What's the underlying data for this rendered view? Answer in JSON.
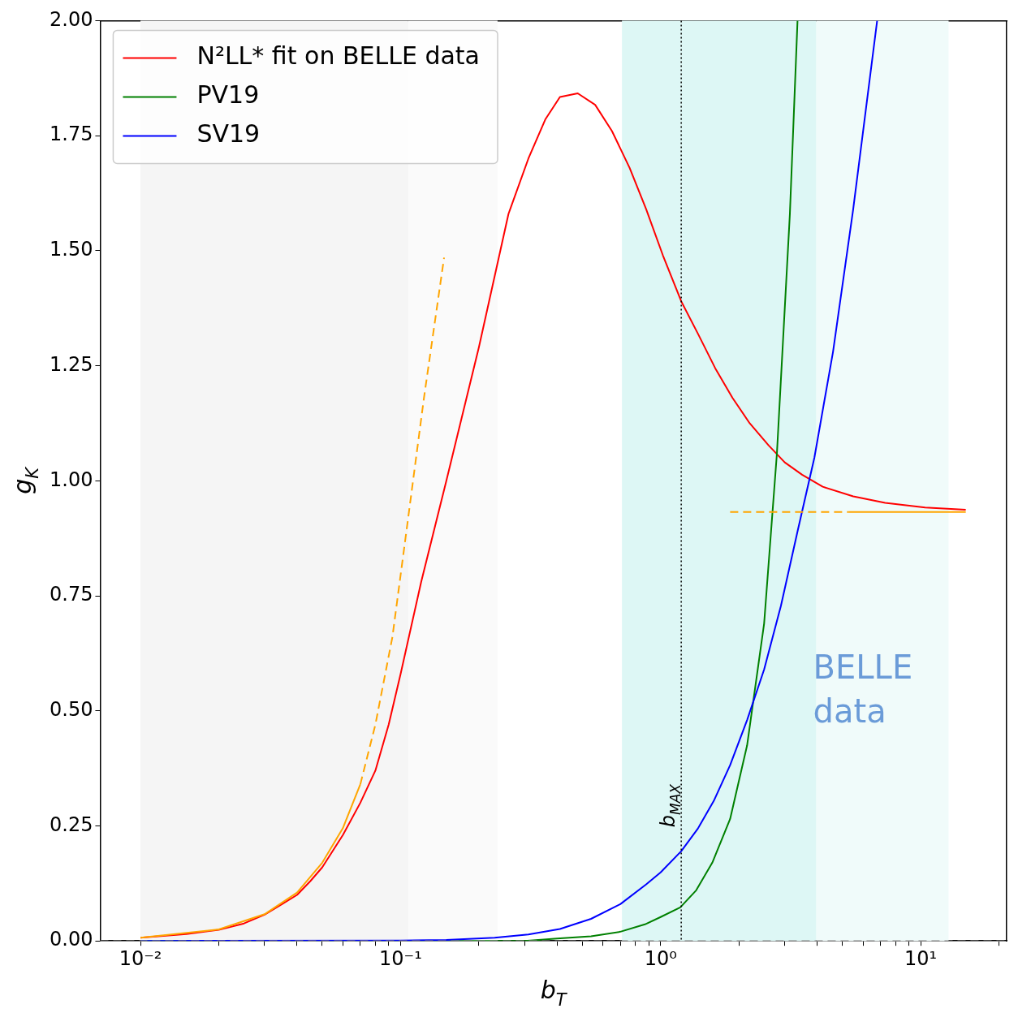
{
  "chart_data": {
    "type": "line",
    "xlabel": "b$_{T}$",
    "ylabel": "g$_{K}$",
    "log": "x",
    "xlim": [
      0.007,
      21.4
    ],
    "ylim": [
      0,
      2
    ],
    "xticks": [
      {
        "value": 0.01,
        "label": "10⁻²"
      },
      {
        "value": 0.02,
        "label": null
      },
      {
        "value": 0.03,
        "label": null
      },
      {
        "value": 0.04,
        "label": null
      },
      {
        "value": 0.05,
        "label": null
      },
      {
        "value": 0.06,
        "label": null
      },
      {
        "value": 0.07,
        "label": null
      },
      {
        "value": 0.08,
        "label": null
      },
      {
        "value": 0.09,
        "label": null
      },
      {
        "value": 0.1,
        "label": "10⁻¹"
      },
      {
        "value": 0.2,
        "label": null
      },
      {
        "value": 0.3,
        "label": null
      },
      {
        "value": 0.4,
        "label": null
      },
      {
        "value": 0.5,
        "label": null
      },
      {
        "value": 0.6,
        "label": null
      },
      {
        "value": 0.7,
        "label": null
      },
      {
        "value": 0.8,
        "label": null
      },
      {
        "value": 0.9,
        "label": null
      },
      {
        "value": 1,
        "label": "10⁰"
      },
      {
        "value": 2,
        "label": null
      },
      {
        "value": 3,
        "label": null
      },
      {
        "value": 4,
        "label": null
      },
      {
        "value": 5,
        "label": null
      },
      {
        "value": 6,
        "label": null
      },
      {
        "value": 7,
        "label": null
      },
      {
        "value": 8,
        "label": null
      },
      {
        "value": 9,
        "label": null
      },
      {
        "value": 10,
        "label": "10¹"
      },
      {
        "value": 20,
        "label": null
      }
    ],
    "yticks": [
      {
        "value": 0,
        "label": "0.00"
      },
      {
        "value": 0.25,
        "label": "0.25"
      },
      {
        "value": 0.5,
        "label": "0.50"
      },
      {
        "value": 0.75,
        "label": "0.75"
      },
      {
        "value": 1,
        "label": "1.00"
      },
      {
        "value": 1.25,
        "label": "1.25"
      },
      {
        "value": 1.5,
        "label": "1.50"
      },
      {
        "value": 1.75,
        "label": "1.75"
      },
      {
        "value": 2,
        "label": "2.00"
      }
    ],
    "legend": "top left",
    "series": [
      {
        "name": "N²LL* fit on BELLE data",
        "color": "#ff0000",
        "x": [
          0.01,
          0.015,
          0.02,
          0.025,
          0.03,
          0.035,
          0.04,
          0.045,
          0.05,
          0.06,
          0.07,
          0.08,
          0.09,
          0.1,
          0.12,
          0.15,
          0.2,
          0.26,
          0.31,
          0.36,
          0.41,
          0.48,
          0.56,
          0.65,
          0.76,
          0.88,
          1.02,
          1.2,
          1.39,
          1.62,
          1.89,
          2.2,
          2.6,
          3.0,
          3.5,
          4.2,
          5.5,
          7.3,
          10.4,
          14.9
        ],
        "values": [
          0.007,
          0.015,
          0.024,
          0.038,
          0.057,
          0.08,
          0.1,
          0.13,
          0.16,
          0.23,
          0.3,
          0.37,
          0.47,
          0.58,
          0.78,
          1.0,
          1.29,
          1.58,
          1.7,
          1.785,
          1.834,
          1.842,
          1.817,
          1.76,
          1.68,
          1.59,
          1.49,
          1.39,
          1.32,
          1.245,
          1.18,
          1.125,
          1.077,
          1.04,
          1.013,
          0.987,
          0.966,
          0.952,
          0.942,
          0.937
        ]
      },
      {
        "name": "PV19",
        "color": "#008000",
        "x": [
          0.01,
          0.1,
          0.3,
          0.4,
          0.54,
          0.7,
          0.87,
          1.0,
          1.19,
          1.37,
          1.58,
          1.85,
          2.15,
          2.5,
          2.8,
          3.14,
          3.36
        ],
        "values": [
          0,
          0,
          0,
          0.005,
          0.01,
          0.02,
          0.036,
          0.052,
          0.073,
          0.11,
          0.17,
          0.265,
          0.425,
          0.69,
          1.06,
          1.58,
          2.0
        ]
      },
      {
        "name": "SV19",
        "color": "#0000ff",
        "x": [
          0.01,
          0.1,
          0.15,
          0.23,
          0.31,
          0.41,
          0.54,
          0.7,
          0.88,
          1.0,
          1.2,
          1.39,
          1.6,
          1.85,
          2.15,
          2.5,
          2.9,
          3.36,
          3.9,
          4.6,
          5.5,
          6.8
        ],
        "values": [
          0,
          0.001,
          0.002,
          0.007,
          0.014,
          0.026,
          0.048,
          0.08,
          0.123,
          0.149,
          0.195,
          0.244,
          0.304,
          0.382,
          0.48,
          0.59,
          0.728,
          0.89,
          1.05,
          1.28,
          1.59,
          2.0
        ]
      },
      {
        "color": "#ffa500",
        "x": [
          0.01,
          0.02,
          0.03,
          0.04,
          0.05,
          0.06,
          0.07
        ],
        "values": [
          0.007,
          0.025,
          0.058,
          0.105,
          0.17,
          0.245,
          0.34
        ]
      },
      {
        "color": "#ffa500",
        "line_style": "dashed",
        "x": [
          0.07,
          0.08,
          0.093,
          0.107,
          0.123,
          0.147
        ],
        "values": [
          0.34,
          0.47,
          0.66,
          0.92,
          1.18,
          1.485
        ]
      },
      {
        "color": "#ffa500",
        "line_style": "dashed",
        "x": [
          1.85,
          5.3
        ],
        "values": [
          0.932,
          0.932
        ]
      },
      {
        "color": "#ffa500",
        "x": [
          5.3,
          14.9
        ],
        "values": [
          0.932,
          0.932
        ]
      }
    ],
    "bands": [
      {
        "axis": "x",
        "from": 0.01,
        "to": 0.107,
        "color": "#f5f5f5"
      },
      {
        "axis": "x",
        "from": 0.107,
        "to": 0.236,
        "color": "#fafafa"
      },
      {
        "axis": "x",
        "from": 0.71,
        "to": 3.97,
        "color": "#ddf7f5"
      },
      {
        "axis": "x",
        "from": 3.97,
        "to": 12.8,
        "color": "#f0fbfa",
        "label": "BELLE data"
      }
    ],
    "ref_lines": [
      {
        "axis": "x",
        "value": 1.2,
        "label": "b$_{MAX}$",
        "color": "#000000",
        "line_style": "dotted"
      },
      {
        "axis": "y",
        "value": 0,
        "color": "#808080",
        "line_style": "dashed"
      }
    ]
  }
}
